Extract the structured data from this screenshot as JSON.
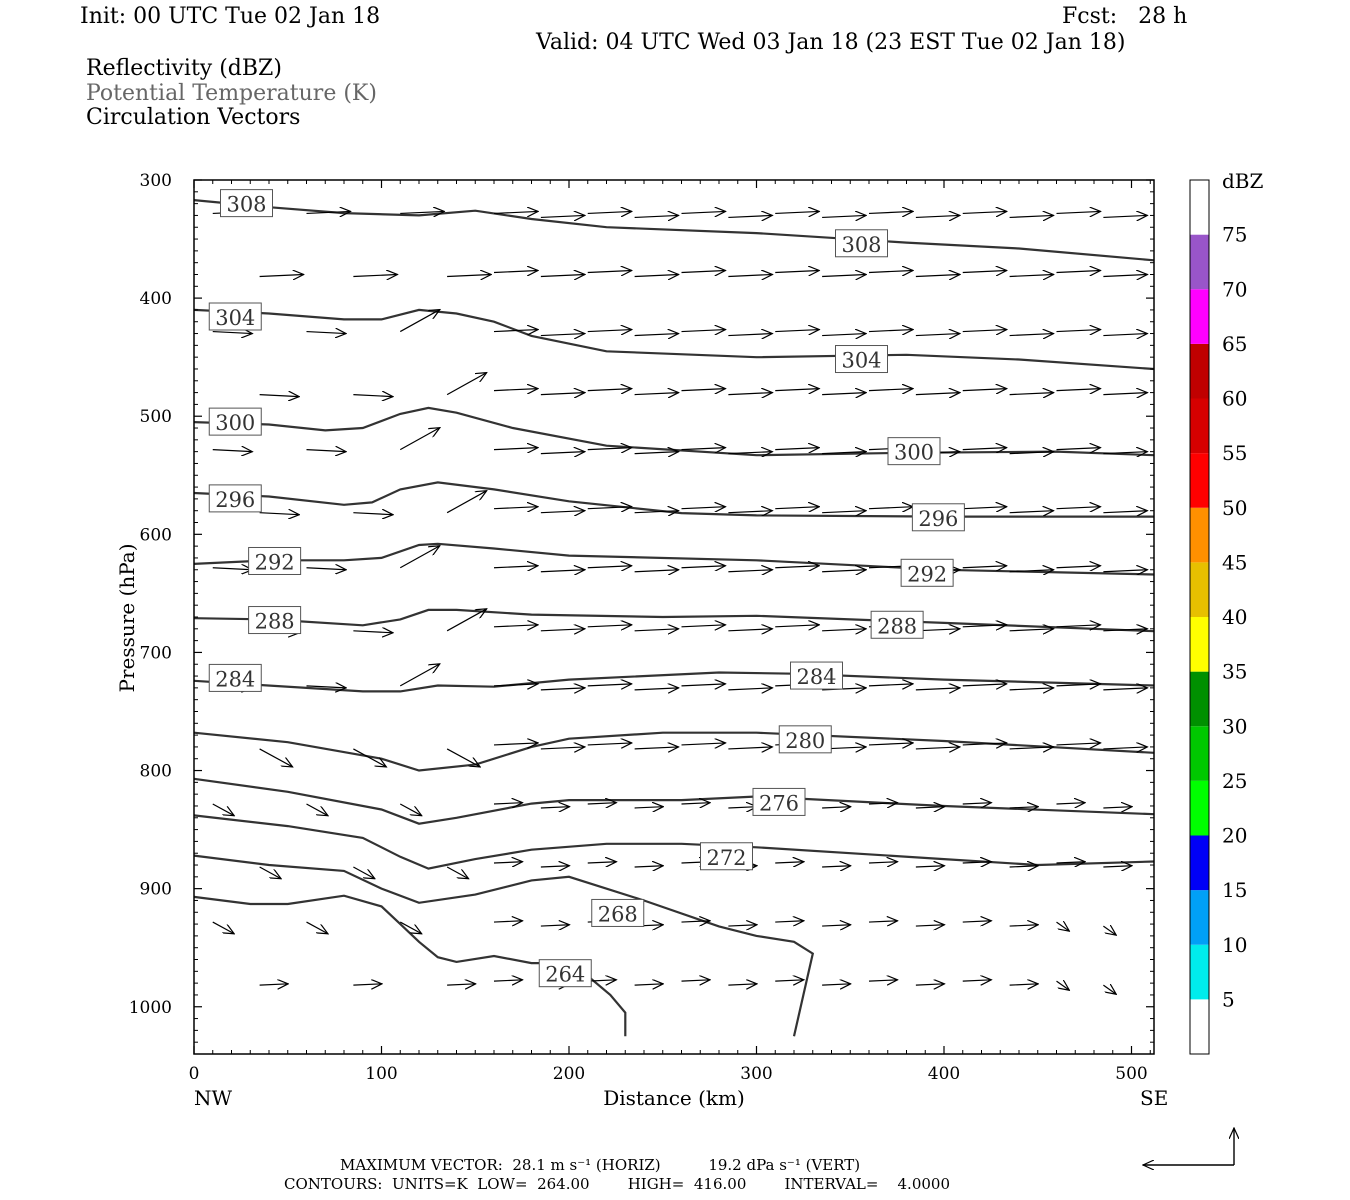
{
  "header": {
    "init": "Init: 00 UTC Tue 02 Jan 18",
    "fcst": "Fcst:   28 h",
    "valid": "Valid: 04 UTC Wed 03 Jan 18 (23 EST Tue 02 Jan 18)"
  },
  "titles": [
    "Reflectivity (dBZ)",
    "Potential Temperature (K)",
    "Circulation Vectors"
  ],
  "footer": {
    "line1": "MAXIMUM VECTOR:  28.1 m s⁻¹ (HORIZ)          19.2 dPa s⁻¹ (VERT)",
    "line2": "CONTOURS:  UNITS=K  LOW=  264.00        HIGH=  416.00        INTERVAL=    4.0000"
  },
  "chart_data": {
    "type": "line",
    "ylabel": "Pressure (hPa)",
    "xlabel": "Distance (km)",
    "x_endpoints": [
      "NW",
      "SE"
    ],
    "xlim": [
      0,
      512
    ],
    "ylim": [
      300,
      1040
    ],
    "y_inverted": true,
    "x_ticks": [
      0,
      100,
      200,
      300,
      400,
      500
    ],
    "y_ticks": [
      300,
      400,
      500,
      600,
      700,
      800,
      900,
      1000
    ],
    "series": [
      {
        "name": "308",
        "x": [
          0,
          40,
          80,
          120,
          150,
          180,
          220,
          300,
          380,
          440,
          512
        ],
        "y": [
          317,
          323,
          328,
          330,
          326,
          333,
          340,
          345,
          353,
          358,
          368
        ]
      },
      {
        "name": "304",
        "x": [
          0,
          40,
          80,
          100,
          120,
          140,
          160,
          180,
          220,
          300,
          380,
          440,
          512
        ],
        "y": [
          410,
          413,
          418,
          418,
          410,
          413,
          420,
          432,
          445,
          450,
          448,
          452,
          460
        ]
      },
      {
        "name": "300",
        "x": [
          0,
          40,
          70,
          90,
          110,
          125,
          140,
          170,
          220,
          300,
          380,
          460,
          512
        ],
        "y": [
          505,
          507,
          512,
          510,
          498,
          493,
          497,
          510,
          525,
          533,
          531,
          530,
          533
        ]
      },
      {
        "name": "296",
        "x": [
          0,
          40,
          80,
          95,
          110,
          130,
          160,
          200,
          260,
          300,
          400,
          512
        ],
        "y": [
          565,
          568,
          575,
          573,
          562,
          556,
          562,
          572,
          582,
          584,
          585,
          585
        ]
      },
      {
        "name": "292",
        "x": [
          0,
          40,
          80,
          100,
          120,
          130,
          160,
          200,
          300,
          400,
          512
        ],
        "y": [
          625,
          622,
          622,
          620,
          609,
          608,
          612,
          618,
          622,
          630,
          634
        ]
      },
      {
        "name": "288",
        "x": [
          0,
          40,
          90,
          110,
          125,
          140,
          180,
          250,
          300,
          400,
          512
        ],
        "y": [
          671,
          672,
          677,
          672,
          664,
          664,
          668,
          670,
          669,
          675,
          682
        ]
      },
      {
        "name": "284",
        "x": [
          0,
          60,
          90,
          110,
          130,
          160,
          200,
          280,
          320,
          400,
          512
        ],
        "y": [
          724,
          730,
          733,
          733,
          728,
          729,
          723,
          717,
          718,
          723,
          728
        ]
      },
      {
        "name": "280",
        "x": [
          0,
          50,
          100,
          120,
          150,
          180,
          200,
          250,
          300,
          400,
          512
        ],
        "y": [
          768,
          776,
          790,
          800,
          795,
          780,
          773,
          768,
          768,
          775,
          785
        ]
      },
      {
        "name": "276",
        "x": [
          0,
          50,
          100,
          120,
          140,
          180,
          200,
          260,
          300,
          400,
          512
        ],
        "y": [
          807,
          818,
          833,
          845,
          840,
          828,
          825,
          825,
          822,
          830,
          837
        ]
      },
      {
        "name": "272",
        "x": [
          0,
          50,
          90,
          110,
          125,
          150,
          180,
          220,
          260,
          300,
          400,
          450,
          512
        ],
        "y": [
          838,
          847,
          857,
          873,
          883,
          875,
          867,
          862,
          862,
          865,
          875,
          880,
          877
        ]
      },
      {
        "name": "268",
        "x": [
          0,
          40,
          80,
          100,
          120,
          150,
          180,
          200,
          240,
          280,
          300,
          320,
          330,
          325,
          320
        ],
        "y": [
          872,
          880,
          885,
          900,
          912,
          905,
          893,
          890,
          910,
          932,
          940,
          945,
          955,
          990,
          1025
        ]
      },
      {
        "name": "264",
        "x": [
          0,
          30,
          50,
          80,
          100,
          110,
          120,
          130,
          140,
          160,
          180,
          200,
          210,
          222,
          230,
          230
        ],
        "y": [
          907,
          913,
          913,
          906,
          915,
          930,
          945,
          958,
          962,
          957,
          963,
          963,
          974,
          990,
          1005,
          1025
        ]
      }
    ],
    "contour_labels": [
      {
        "text": "308",
        "x": 28,
        "p": 320
      },
      {
        "text": "308",
        "x": 356,
        "p": 354
      },
      {
        "text": "304",
        "x": 22,
        "p": 416
      },
      {
        "text": "304",
        "x": 356,
        "p": 452
      },
      {
        "text": "300",
        "x": 22,
        "p": 505
      },
      {
        "text": "300",
        "x": 384,
        "p": 530
      },
      {
        "text": "296",
        "x": 22,
        "p": 570
      },
      {
        "text": "296",
        "x": 397,
        "p": 586
      },
      {
        "text": "292",
        "x": 43,
        "p": 623
      },
      {
        "text": "292",
        "x": 391,
        "p": 633
      },
      {
        "text": "288",
        "x": 43,
        "p": 673
      },
      {
        "text": "288",
        "x": 375,
        "p": 677
      },
      {
        "text": "284",
        "x": 22,
        "p": 722
      },
      {
        "text": "284",
        "x": 332,
        "p": 720
      },
      {
        "text": "280",
        "x": 326,
        "p": 774
      },
      {
        "text": "276",
        "x": 312,
        "p": 827
      },
      {
        "text": "272",
        "x": 284,
        "p": 873
      },
      {
        "text": "268",
        "x": 226,
        "p": 921
      },
      {
        "text": "264",
        "x": 198,
        "p": 972
      }
    ],
    "vectors_note_rows_hpa": [
      330,
      380,
      430,
      480,
      530,
      580,
      630,
      680,
      730,
      780,
      830,
      880,
      930,
      980
    ],
    "colorbar": {
      "label": "dBZ",
      "ticks": [
        5,
        10,
        15,
        20,
        25,
        30,
        35,
        40,
        45,
        50,
        55,
        60,
        65,
        70,
        75
      ],
      "colors": [
        "#00ecec",
        "#01a0f6",
        "#0000f6",
        "#00ff00",
        "#00c800",
        "#009000",
        "#ffff00",
        "#e7c000",
        "#ff9000",
        "#ff0000",
        "#d60000",
        "#c00000",
        "#ff00ff",
        "#9955c9"
      ]
    }
  }
}
